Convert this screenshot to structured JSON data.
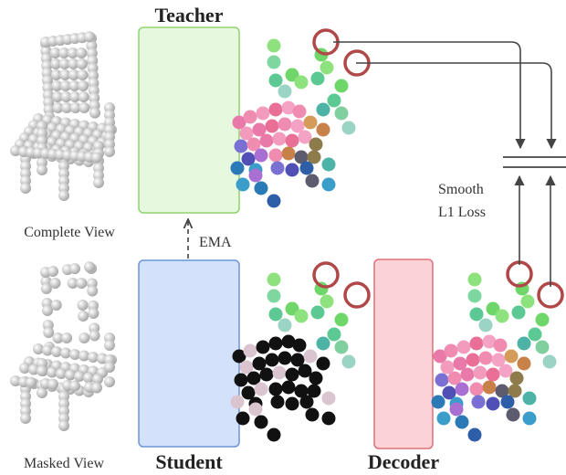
{
  "labels": {
    "teacher": "Teacher",
    "student": "Student",
    "decoder": "Decoder",
    "complete_view": "Complete View",
    "masked_view": "Masked View",
    "ema": "EMA",
    "loss_line1": "Smooth",
    "loss_line2": "L1 Loss"
  },
  "colors": {
    "teacher_fill": "#e6f8dd",
    "teacher_stroke": "#8fd46f",
    "student_fill": "#d3e1fb",
    "student_stroke": "#6d95d8",
    "decoder_fill": "#fbd3d6",
    "decoder_stroke": "#e0707a",
    "highlight_ring": "#b04848",
    "arrow": "#444444"
  }
}
